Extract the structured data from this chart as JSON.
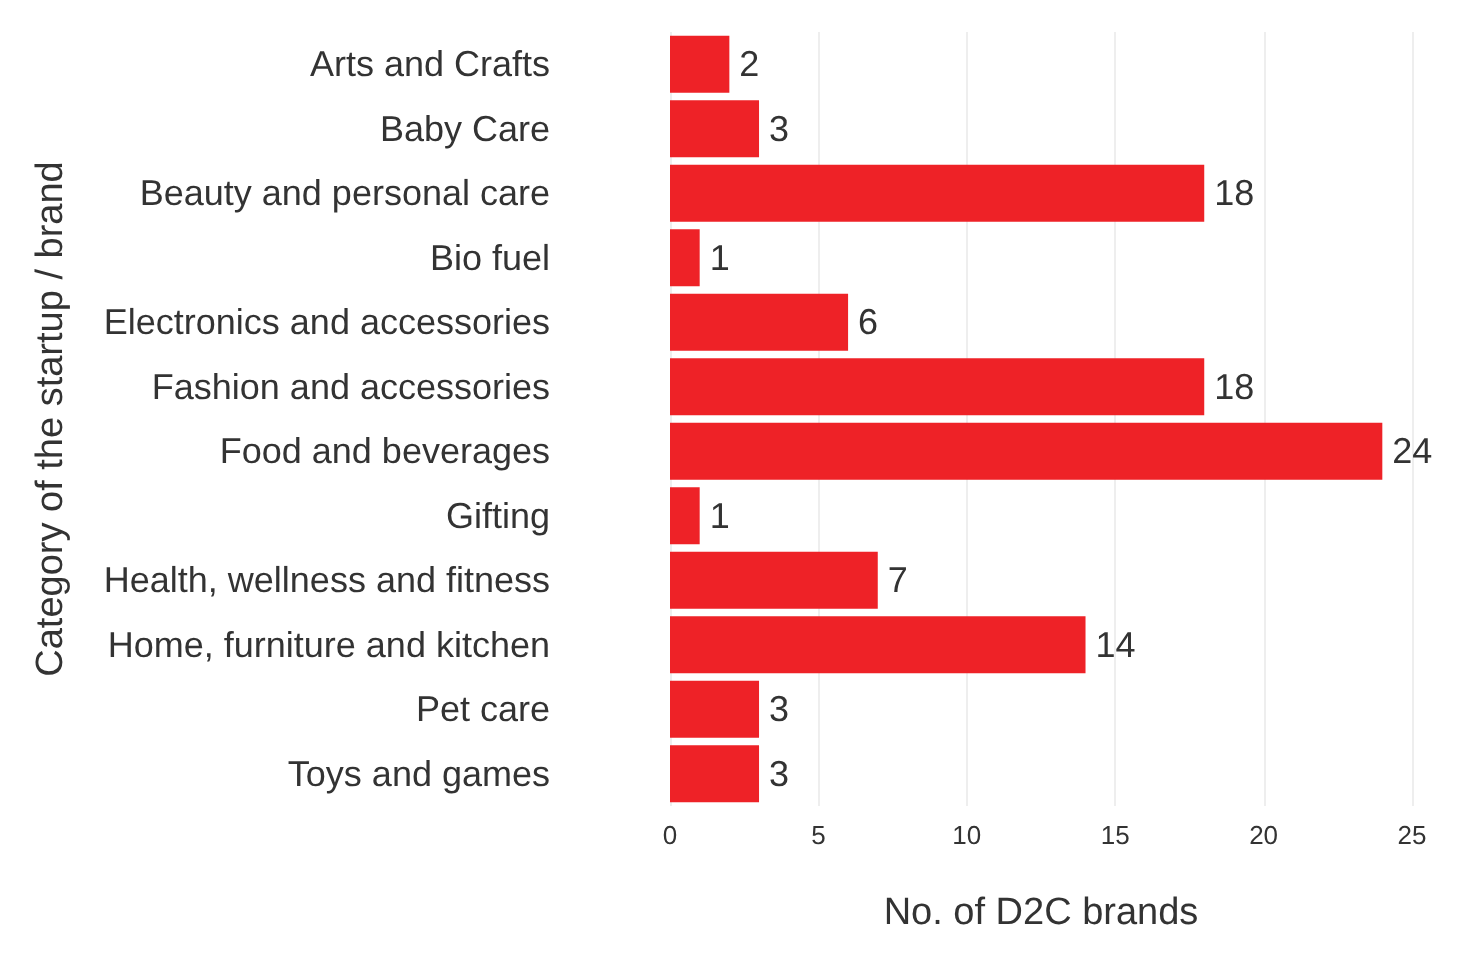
{
  "chart_data": {
    "type": "bar",
    "orientation": "horizontal",
    "xlabel": "No. of D2C brands",
    "ylabel": "Category of the startup / brand",
    "categories": [
      "Arts and Crafts",
      "Baby Care",
      "Beauty and personal care",
      "Bio fuel",
      "Electronics and accessories",
      "Fashion and accessories",
      "Food and beverages",
      "Gifting",
      "Health, wellness and fitness",
      "Home, furniture and kitchen",
      "Pet care",
      "Toys and games"
    ],
    "values": [
      2,
      3,
      18,
      1,
      6,
      18,
      24,
      1,
      7,
      14,
      3,
      3
    ],
    "color": "#ee2227",
    "xlim": [
      0,
      25
    ],
    "xticks": [
      0,
      5,
      10,
      15,
      20,
      25
    ],
    "grid": "x",
    "data_labels": true
  }
}
